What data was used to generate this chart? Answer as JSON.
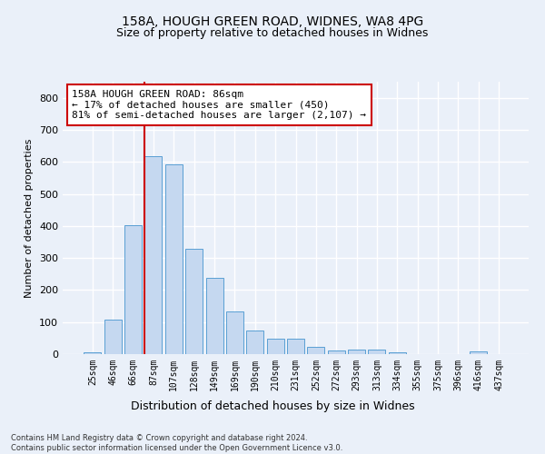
{
  "title1": "158A, HOUGH GREEN ROAD, WIDNES, WA8 4PG",
  "title2": "Size of property relative to detached houses in Widnes",
  "xlabel": "Distribution of detached houses by size in Widnes",
  "ylabel": "Number of detached properties",
  "categories": [
    "25sqm",
    "46sqm",
    "66sqm",
    "87sqm",
    "107sqm",
    "128sqm",
    "149sqm",
    "169sqm",
    "190sqm",
    "210sqm",
    "231sqm",
    "252sqm",
    "272sqm",
    "293sqm",
    "313sqm",
    "334sqm",
    "355sqm",
    "375sqm",
    "396sqm",
    "416sqm",
    "437sqm"
  ],
  "values": [
    7,
    107,
    403,
    618,
    592,
    328,
    238,
    133,
    75,
    48,
    48,
    23,
    12,
    15,
    15,
    5,
    0,
    0,
    0,
    8,
    0
  ],
  "bar_color": "#c5d8f0",
  "bar_edge_color": "#5a9fd4",
  "vline_idx": 3,
  "vline_color": "#cc0000",
  "annotation_text": "158A HOUGH GREEN ROAD: 86sqm\n← 17% of detached houses are smaller (450)\n81% of semi-detached houses are larger (2,107) →",
  "annotation_box_color": "#ffffff",
  "annotation_box_edge": "#cc0000",
  "bg_color": "#eaf0f9",
  "grid_color": "#ffffff",
  "footnote": "Contains HM Land Registry data © Crown copyright and database right 2024.\nContains public sector information licensed under the Open Government Licence v3.0.",
  "ylim": [
    0,
    850
  ],
  "yticks": [
    0,
    100,
    200,
    300,
    400,
    500,
    600,
    700,
    800
  ],
  "fig_bg": "#eaf0f9"
}
